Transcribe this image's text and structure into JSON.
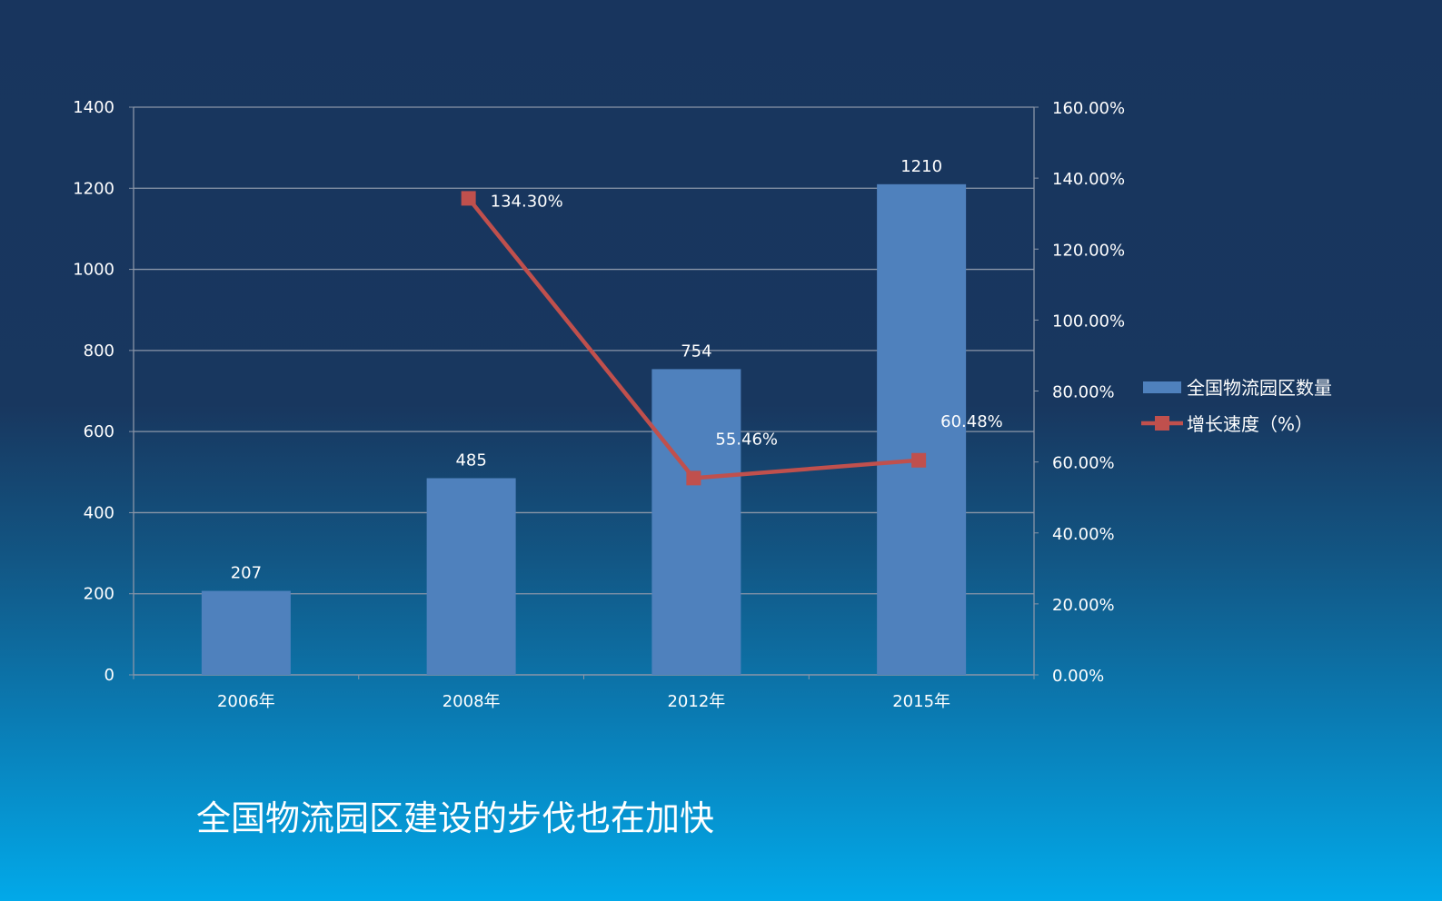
{
  "chart_data": {
    "type": "bar+line",
    "categories": [
      "2006年",
      "2008年",
      "2012年",
      "2015年"
    ],
    "series": [
      {
        "name": "全国物流园区数量",
        "type": "bar",
        "axis": "left",
        "values": [
          207,
          485,
          754,
          1210
        ],
        "labels": [
          "207",
          "485",
          "754",
          "1210"
        ],
        "color": "#4f81bd"
      },
      {
        "name": "增长速度（%）",
        "type": "line",
        "axis": "right",
        "values": [
          null,
          134.3,
          55.46,
          60.48
        ],
        "labels": [
          "",
          "134.30%",
          "55.46%",
          "60.48%"
        ],
        "color": "#c0504d",
        "marker": "square"
      }
    ],
    "y_left": {
      "range": [
        0,
        1400
      ],
      "ticks": [
        "0",
        "200",
        "400",
        "600",
        "800",
        "1000",
        "1200",
        "1400"
      ]
    },
    "y_right": {
      "range": [
        0,
        160
      ],
      "ticks": [
        "0.00%",
        "20.00%",
        "40.00%",
        "60.00%",
        "80.00%",
        "100.00%",
        "120.00%",
        "140.00%",
        "160.00%"
      ]
    },
    "grid": true,
    "legend": "right"
  },
  "caption": "全国物流园区建设的步伐也在加快"
}
